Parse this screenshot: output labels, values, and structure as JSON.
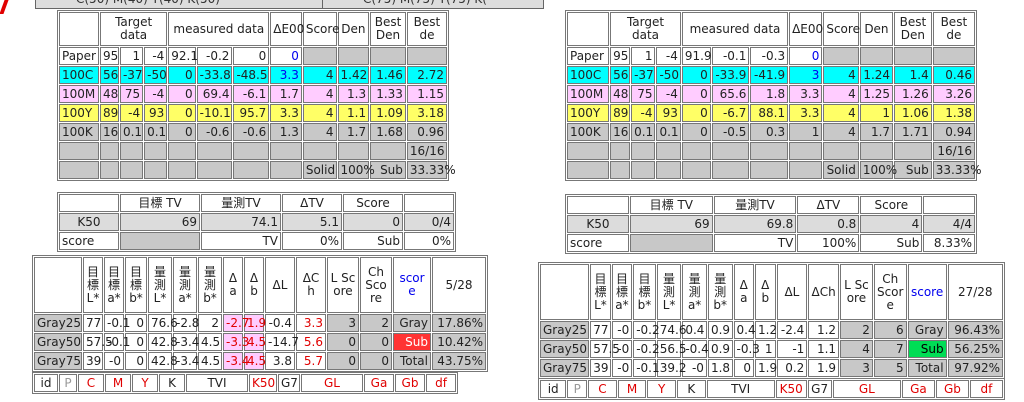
{
  "panels": [
    {
      "caption": "C(50) M(40) Y(40) K(50)",
      "solid": {
        "header": [
          null,
          "Target data",
          "measured data",
          "ΔE00",
          "Score",
          "Den",
          "Best Den",
          "Best de"
        ],
        "rows": [
          {
            "label": "Paper",
            "color": "#ffffff",
            "cells": [
              "95",
              "1",
              "-4",
              "92.1",
              "-0.2",
              "0",
              "0",
              null,
              null,
              null,
              null
            ]
          },
          {
            "label": "100C",
            "color": "#00ffff",
            "cells": [
              "56",
              "-37",
              "-50",
              "0",
              "-33.8",
              "-48.5",
              "3.3",
              "4",
              "1.42",
              "1.46",
              "2.72"
            ]
          },
          {
            "label": "100M",
            "color": "#ffccff",
            "cells": [
              "48",
              "75",
              "-4",
              "0",
              "69.4",
              "-6.1",
              "1.7",
              "4",
              "1.3",
              "1.33",
              "1.15"
            ]
          },
          {
            "label": "100Y",
            "color": "#ffff66",
            "cells": [
              "89",
              "-4",
              "93",
              "0",
              "-10.1",
              "95.7",
              "3.3",
              "4",
              "1.1",
              "1.09",
              "3.18"
            ]
          },
          {
            "label": "100K",
            "color": "#c8c8c8",
            "cells": [
              "16",
              "0.1",
              "0.1",
              "0",
              "-0.6",
              "-0.6",
              "1.3",
              "4",
              "1.7",
              "1.68",
              "0.96"
            ]
          },
          {
            "label": null,
            "color": "#c8c8c8",
            "cells": [
              null,
              null,
              null,
              null,
              null,
              null,
              null,
              null,
              null,
              null,
              "16/16"
            ]
          },
          {
            "label": null,
            "color": "#c8c8c8",
            "cells": [
              null,
              null,
              null,
              null,
              null,
              null,
              null,
              "Solid",
              "100%",
              "Sub",
              "33.33%"
            ]
          }
        ]
      },
      "tv": {
        "header": [
          null,
          "目標 TV",
          "量測TV",
          "ΔTV",
          "Score",
          null
        ],
        "rows": [
          [
            "K50",
            "69",
            "74.1",
            "5.1",
            "0",
            "0/4"
          ],
          [
            "score",
            null,
            "TV",
            "0%",
            "Sub",
            "0%"
          ]
        ]
      },
      "gray": {
        "header": [
          null,
          "目標L*",
          "目標a*",
          "目標b*",
          "量測L*",
          "量測a*",
          "量測b*",
          "Δa",
          "Δb",
          "ΔL",
          "ΔCh",
          "L Score",
          "Ch Score",
          "score",
          "5/28"
        ],
        "rows": [
          [
            "Gray25",
            "77",
            "-0.1",
            "0",
            "76.6",
            "-2.8",
            "2",
            "-2.7",
            "1.9",
            "-0.4",
            "3.3",
            "3",
            "2",
            "Gray",
            "17.86%"
          ],
          [
            "Gray50",
            "57.5",
            "-0.1",
            "0",
            "42.8",
            "-3.4",
            "4.5",
            "-3.3",
            "4.5",
            "-14.7",
            "5.6",
            "0",
            "0",
            "Sub",
            "10.42%"
          ],
          [
            "Gray75",
            "39",
            "-0",
            "0",
            "42.8",
            "-3.4",
            "4.5",
            "-3.4",
            "4.5",
            "3.8",
            "5.7",
            "0",
            "0",
            "Total",
            "43.75%"
          ]
        ]
      },
      "bottom": [
        "id",
        "P",
        "C",
        "M",
        "Y",
        "K",
        "TVI",
        "K50",
        "G7",
        "GL",
        "Ga",
        "Gb",
        "df"
      ]
    },
    {
      "caption": "C(75) M(75) Y(75) K(",
      "solid": {
        "header": [
          null,
          "Target data",
          "measured data",
          "ΔE00",
          "Score",
          "Den",
          "Best Den",
          "Best de"
        ],
        "rows": [
          {
            "label": "Paper",
            "color": "#ffffff",
            "cells": [
              "95",
              "1",
              "-4",
              "91.9",
              "-0.1",
              "-0.3",
              "0",
              null,
              null,
              null,
              null
            ]
          },
          {
            "label": "100C",
            "color": "#00ffff",
            "cells": [
              "56",
              "-37",
              "-50",
              "0",
              "-33.9",
              "-41.9",
              "3",
              "4",
              "1.24",
              "1.4",
              "0.46"
            ]
          },
          {
            "label": "100M",
            "color": "#ffccff",
            "cells": [
              "48",
              "75",
              "-4",
              "0",
              "65.6",
              "1.8",
              "3.3",
              "4",
              "1.25",
              "1.26",
              "3.26"
            ]
          },
          {
            "label": "100Y",
            "color": "#ffff66",
            "cells": [
              "89",
              "-4",
              "93",
              "0",
              "-6.7",
              "88.1",
              "3.3",
              "4",
              "1",
              "1.06",
              "1.38"
            ]
          },
          {
            "label": "100K",
            "color": "#c8c8c8",
            "cells": [
              "16",
              "0.1",
              "0.1",
              "0",
              "-0.5",
              "0.3",
              "1",
              "4",
              "1.7",
              "1.71",
              "0.94"
            ]
          },
          {
            "label": null,
            "color": "#c8c8c8",
            "cells": [
              null,
              null,
              null,
              null,
              null,
              null,
              null,
              null,
              null,
              null,
              "16/16"
            ]
          },
          {
            "label": null,
            "color": "#c8c8c8",
            "cells": [
              null,
              null,
              null,
              null,
              null,
              null,
              null,
              "Solid",
              "100%",
              "Sub",
              "33.33%"
            ]
          }
        ]
      },
      "tv": {
        "header": [
          null,
          "目標 TV",
          "量測TV",
          "ΔTV",
          "Score",
          null
        ],
        "rows": [
          [
            "K50",
            "69",
            "69.8",
            "0.8",
            "4",
            "4/4"
          ],
          [
            "score",
            null,
            "TV",
            "100%",
            "Sub",
            "8.33%"
          ]
        ]
      },
      "gray": {
        "header": [
          null,
          "目標L*",
          "目標a*",
          "目標b*",
          "量測L*",
          "量測a*",
          "量測b*",
          "Δa",
          "Δb",
          "ΔL",
          "ΔCh",
          "L Score",
          "Ch Score",
          "score",
          "27/28"
        ],
        "rows": [
          [
            "Gray25",
            "77",
            "-0",
            "-0.2",
            "74.6",
            "0.4",
            "0.9",
            "0.4",
            "1.2",
            "-2.4",
            "1.2",
            "2",
            "6",
            "Gray",
            "96.43%"
          ],
          [
            "Gray50",
            "57.5",
            "-0",
            "-0.2",
            "56.5",
            "-0.4",
            "0.9",
            "-0.3",
            "1",
            "-1",
            "1.1",
            "4",
            "7",
            "Sub",
            "56.25%"
          ],
          [
            "Gray75",
            "39",
            "-0",
            "-0.1",
            "39.2",
            "-0",
            "1.8",
            "0",
            "1.9",
            "0.2",
            "1.9",
            "3",
            "5",
            "Total",
            "97.92%"
          ]
        ]
      },
      "bottom": [
        "id",
        "P",
        "C",
        "M",
        "Y",
        "K",
        "TVI",
        "K50",
        "G7",
        "GL",
        "Ga",
        "Gb",
        "df"
      ]
    }
  ]
}
